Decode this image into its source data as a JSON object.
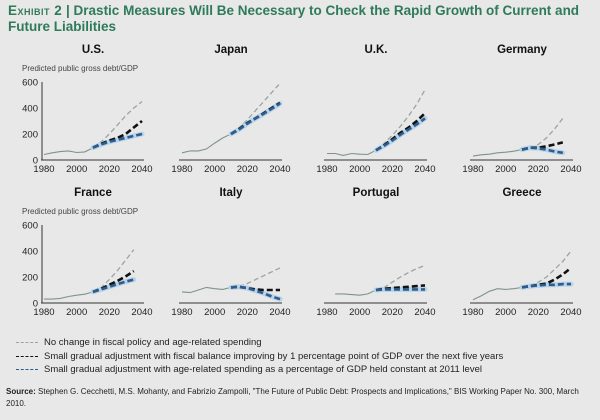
{
  "exhibit_label": "Exhibit 2",
  "title": "Drastic Measures Will Be Necessary to Check the Rapid Growth of Current and Future Liabilities",
  "colors": {
    "title": "#2f7a5a",
    "historical": "#7f948a",
    "no_change": "#9aa59f",
    "fiscal": "#111111",
    "age": "#2d5d8c",
    "age_halo": "#b9d3ea"
  },
  "legend": [
    {
      "label": "No change in fiscal policy and age-related spending",
      "color": "#9aa59f"
    },
    {
      "label": "Small gradual adjustment with fiscal balance improving by 1 percentage point of GDP over the next five years",
      "color": "#111111"
    },
    {
      "label": "Small gradual adjustment with age-related spending as a percentage of GDP held constant at 2011 level",
      "color": "#2d5d8c"
    }
  ],
  "source_label": "Source:",
  "source_text": "Stephen G. Cecchetti, M.S. Mohanty, and Fabrizio Zampolli, \"The Future of Public Debt: Prospects and Implications,\" BIS Working Paper No. 300, March 2010.",
  "chart_data": {
    "type": "line",
    "ylabel": "Predicted public gross debt/GDP",
    "xlim": [
      1980,
      2040
    ],
    "ylim": [
      0,
      600
    ],
    "xticks": [
      "1980",
      "2000",
      "2020",
      "2040"
    ],
    "yticks": [
      "0",
      "200",
      "400",
      "600"
    ],
    "panels": [
      {
        "title": "U.S.",
        "show_y": true,
        "historical": {
          "x": [
            1980,
            1985,
            1990,
            1995,
            2000,
            2005,
            2010
          ],
          "y": [
            42,
            55,
            65,
            70,
            58,
            62,
            95
          ]
        },
        "no_change": {
          "x": [
            2010,
            2015,
            2020,
            2025,
            2030,
            2035,
            2040
          ],
          "y": [
            95,
            140,
            200,
            270,
            340,
            400,
            450
          ]
        },
        "fiscal": {
          "x": [
            2010,
            2015,
            2020,
            2025,
            2030,
            2035,
            2040
          ],
          "y": [
            95,
            125,
            150,
            170,
            200,
            250,
            300
          ]
        },
        "age": {
          "x": [
            2010,
            2015,
            2020,
            2025,
            2030,
            2035,
            2040
          ],
          "y": [
            95,
            120,
            140,
            155,
            170,
            185,
            200
          ]
        }
      },
      {
        "title": "Japan",
        "show_y": false,
        "historical": {
          "x": [
            1980,
            1985,
            1990,
            1995,
            2000,
            2005,
            2010
          ],
          "y": [
            55,
            70,
            70,
            85,
            130,
            170,
            200
          ]
        },
        "no_change": {
          "x": [
            2010,
            2015,
            2020,
            2025,
            2030,
            2035,
            2040
          ],
          "y": [
            200,
            250,
            310,
            380,
            450,
            520,
            590
          ]
        },
        "fiscal": {
          "x": [
            2010,
            2015,
            2020,
            2025,
            2030,
            2035,
            2040
          ],
          "y": [
            200,
            240,
            285,
            320,
            360,
            400,
            440
          ]
        },
        "age": {
          "x": [
            2010,
            2015,
            2020,
            2025,
            2030,
            2035,
            2040
          ],
          "y": [
            200,
            235,
            280,
            320,
            355,
            395,
            435
          ]
        }
      },
      {
        "title": "U.K.",
        "show_y": false,
        "historical": {
          "x": [
            1980,
            1985,
            1990,
            1995,
            2000,
            2005,
            2010
          ],
          "y": [
            50,
            50,
            35,
            50,
            45,
            42,
            75
          ]
        },
        "no_change": {
          "x": [
            2010,
            2015,
            2020,
            2025,
            2030,
            2035,
            2040
          ],
          "y": [
            75,
            130,
            190,
            260,
            340,
            430,
            540
          ]
        },
        "fiscal": {
          "x": [
            2010,
            2015,
            2020,
            2025,
            2030,
            2035,
            2040
          ],
          "y": [
            75,
            115,
            160,
            210,
            250,
            300,
            360
          ]
        },
        "age": {
          "x": [
            2010,
            2015,
            2020,
            2025,
            2030,
            2035,
            2040
          ],
          "y": [
            75,
            110,
            150,
            195,
            235,
            275,
            320
          ]
        }
      },
      {
        "title": "Germany",
        "show_y": false,
        "historical": {
          "x": [
            1980,
            1985,
            1990,
            1995,
            2000,
            2005,
            2010
          ],
          "y": [
            30,
            40,
            45,
            55,
            60,
            68,
            80
          ]
        },
        "no_change": {
          "x": [
            2010,
            2015,
            2020,
            2025,
            2030,
            2035
          ],
          "y": [
            80,
            90,
            120,
            170,
            240,
            320
          ]
        },
        "fiscal": {
          "x": [
            2010,
            2015,
            2020,
            2025,
            2030,
            2035
          ],
          "y": [
            80,
            95,
            95,
            105,
            120,
            135
          ]
        },
        "age": {
          "x": [
            2010,
            2015,
            2020,
            2025,
            2030,
            2035
          ],
          "y": [
            80,
            95,
            90,
            80,
            65,
            55
          ]
        }
      },
      {
        "title": "France",
        "show_y": true,
        "historical": {
          "x": [
            1980,
            1985,
            1990,
            1995,
            2000,
            2005,
            2010
          ],
          "y": [
            30,
            30,
            35,
            50,
            60,
            68,
            85
          ]
        },
        "no_change": {
          "x": [
            2010,
            2015,
            2020,
            2025,
            2030,
            2035
          ],
          "y": [
            85,
            120,
            180,
            250,
            330,
            410
          ]
        },
        "fiscal": {
          "x": [
            2010,
            2015,
            2020,
            2025,
            2030,
            2035
          ],
          "y": [
            85,
            110,
            140,
            170,
            205,
            245
          ]
        },
        "age": {
          "x": [
            2010,
            2015,
            2020,
            2025,
            2030,
            2035
          ],
          "y": [
            85,
            105,
            125,
            145,
            165,
            180
          ]
        }
      },
      {
        "title": "Italy",
        "show_y": false,
        "historical": {
          "x": [
            1980,
            1985,
            1990,
            1995,
            2000,
            2005,
            2010
          ],
          "y": [
            85,
            80,
            100,
            120,
            110,
            105,
            120
          ]
        },
        "no_change": {
          "x": [
            2010,
            2015,
            2020,
            2025,
            2030,
            2035,
            2040
          ],
          "y": [
            120,
            130,
            150,
            180,
            210,
            240,
            270
          ]
        },
        "fiscal": {
          "x": [
            2010,
            2015,
            2020,
            2025,
            2030,
            2035,
            2040
          ],
          "y": [
            120,
            125,
            115,
            105,
            100,
            100,
            100
          ]
        },
        "age": {
          "x": [
            2010,
            2015,
            2020,
            2025,
            2030,
            2035,
            2040
          ],
          "y": [
            120,
            125,
            115,
            95,
            75,
            50,
            30
          ]
        }
      },
      {
        "title": "Portugal",
        "show_y": false,
        "historical": {
          "x": [
            1985,
            1990,
            1995,
            2000,
            2005,
            2010
          ],
          "y": [
            70,
            70,
            65,
            60,
            70,
            100
          ]
        },
        "no_change": {
          "x": [
            2010,
            2015,
            2020,
            2025,
            2030,
            2035,
            2040
          ],
          "y": [
            100,
            120,
            160,
            200,
            235,
            265,
            290
          ]
        },
        "fiscal": {
          "x": [
            2010,
            2015,
            2020,
            2025,
            2030,
            2035,
            2040
          ],
          "y": [
            100,
            110,
            115,
            120,
            125,
            130,
            135
          ]
        },
        "age": {
          "x": [
            2010,
            2015,
            2020,
            2025,
            2030,
            2035,
            2040
          ],
          "y": [
            100,
            105,
            105,
            105,
            105,
            105,
            105
          ]
        }
      },
      {
        "title": "Greece",
        "show_y": false,
        "historical": {
          "x": [
            1980,
            1985,
            1990,
            1995,
            2000,
            2005,
            2010
          ],
          "y": [
            25,
            55,
            90,
            110,
            105,
            110,
            120
          ]
        },
        "no_change": {
          "x": [
            2010,
            2015,
            2020,
            2025,
            2030,
            2035,
            2040
          ],
          "y": [
            120,
            140,
            160,
            200,
            260,
            320,
            400
          ]
        },
        "fiscal": {
          "x": [
            2010,
            2015,
            2020,
            2025,
            2030,
            2035,
            2040
          ],
          "y": [
            120,
            130,
            140,
            150,
            180,
            220,
            270
          ]
        },
        "age": {
          "x": [
            2010,
            2015,
            2020,
            2025,
            2030,
            2035,
            2040
          ],
          "y": [
            120,
            130,
            135,
            140,
            140,
            145,
            145
          ]
        }
      }
    ]
  }
}
